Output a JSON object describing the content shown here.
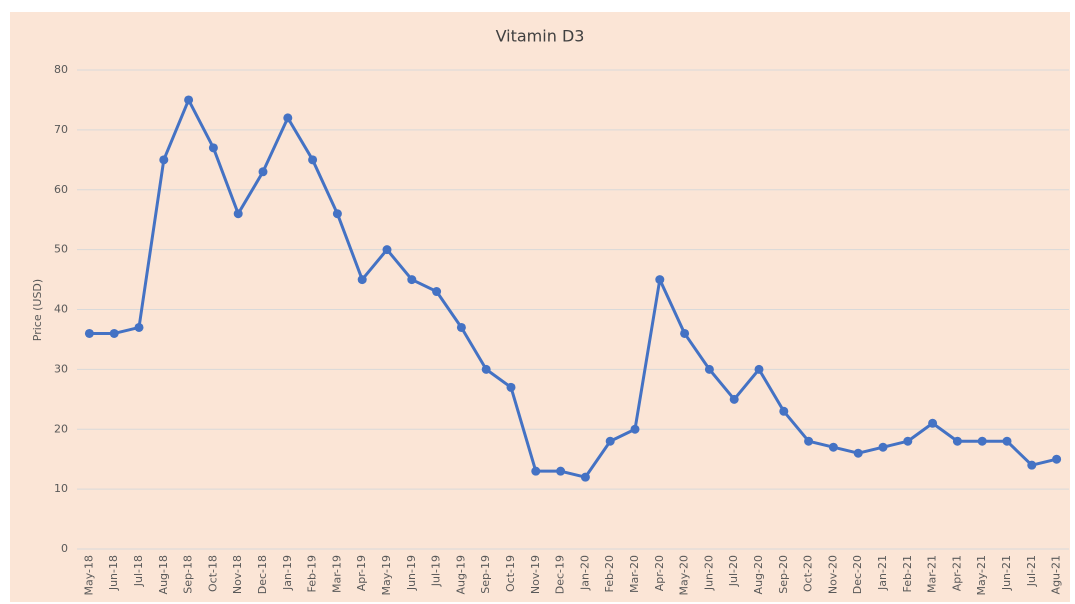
{
  "chart_data": {
    "type": "line",
    "title": "Vitamin D3",
    "y_label": "Price (USD)",
    "categories": [
      "May-18",
      "Jun-18",
      "Jul-18",
      "Aug-18",
      "Sep-18",
      "Oct-18",
      "Nov-18",
      "Dec-18",
      "Jan-19",
      "Feb-19",
      "Mar-19",
      "Apr-19",
      "May-19",
      "Jun-19",
      "Jul-19",
      "Aug-19",
      "Sep-19",
      "Oct-19",
      "Nov-19",
      "Dec-19",
      "Jan-20",
      "Feb-20",
      "Mar-20",
      "Apr-20",
      "May-20",
      "Jun-20",
      "Jul-20",
      "Aug-20",
      "Sep-20",
      "Oct-20",
      "Nov-20",
      "Dec-20",
      "Jan-21",
      "Feb-21",
      "Mar-21",
      "Apr-21",
      "May-21",
      "Jun-21",
      "Jul-21",
      "Agu-21"
    ],
    "series": [
      {
        "name": "Vitamin D3",
        "color": "#4472c4",
        "values": [
          36,
          36,
          37,
          65,
          75,
          67,
          56,
          63,
          72,
          65,
          56,
          45,
          50,
          45,
          43,
          37,
          30,
          27,
          13,
          13,
          12,
          18,
          20,
          45,
          36,
          30,
          25,
          30,
          23,
          18,
          17,
          16,
          17,
          18,
          21,
          18,
          18,
          18,
          14,
          15
        ]
      }
    ],
    "ylim": [
      0,
      80
    ],
    "yticks": [
      0,
      10,
      20,
      30,
      40,
      50,
      60,
      70,
      80
    ],
    "grid": true
  }
}
